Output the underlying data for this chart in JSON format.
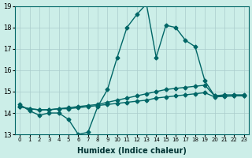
{
  "xlabel": "Humidex (Indice chaleur)",
  "ylabel": "",
  "bg_color": "#cceee8",
  "grid_color": "#aacccc",
  "line_color": "#006666",
  "xlim": [
    -0.5,
    23.5
  ],
  "ylim": [
    13,
    19
  ],
  "yticks": [
    13,
    14,
    15,
    16,
    17,
    18,
    19
  ],
  "xticks": [
    0,
    1,
    2,
    3,
    4,
    5,
    6,
    7,
    8,
    9,
    10,
    11,
    12,
    13,
    14,
    15,
    16,
    17,
    18,
    19,
    20,
    21,
    22,
    23
  ],
  "line1_x": [
    0,
    1,
    2,
    3,
    4,
    5,
    6,
    7,
    8,
    9,
    10,
    11,
    12,
    13,
    14,
    15,
    16,
    17,
    18,
    19,
    20,
    21,
    22,
    23
  ],
  "line1_y": [
    14.4,
    14.1,
    13.9,
    14.0,
    14.0,
    13.7,
    13.0,
    13.1,
    14.3,
    15.1,
    16.6,
    18.0,
    18.6,
    19.1,
    16.6,
    18.1,
    18.0,
    17.4,
    17.1,
    15.5,
    14.8,
    14.8,
    14.8,
    14.8
  ],
  "line2_x": [
    0,
    1,
    2,
    3,
    4,
    5,
    6,
    7,
    8,
    9,
    10,
    11,
    12,
    13,
    14,
    15,
    16,
    17,
    18,
    19,
    20,
    21,
    22,
    23
  ],
  "line2_y": [
    14.3,
    14.2,
    14.15,
    14.15,
    14.2,
    14.25,
    14.3,
    14.35,
    14.4,
    14.5,
    14.6,
    14.7,
    14.8,
    14.9,
    15.0,
    15.1,
    15.15,
    15.2,
    15.25,
    15.3,
    14.8,
    14.85,
    14.85,
    14.85
  ],
  "line3_x": [
    0,
    1,
    2,
    3,
    4,
    5,
    6,
    7,
    8,
    9,
    10,
    11,
    12,
    13,
    14,
    15,
    16,
    17,
    18,
    19,
    20,
    21,
    22,
    23
  ],
  "line3_y": [
    14.3,
    14.2,
    14.15,
    14.15,
    14.2,
    14.2,
    14.25,
    14.3,
    14.35,
    14.4,
    14.45,
    14.5,
    14.55,
    14.6,
    14.7,
    14.75,
    14.8,
    14.85,
    14.9,
    14.95,
    14.75,
    14.78,
    14.8,
    14.82
  ]
}
